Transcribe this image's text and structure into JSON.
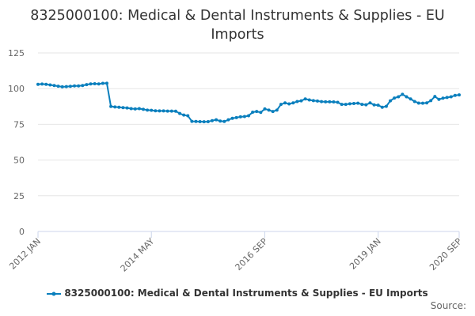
{
  "chart_data": {
    "type": "line",
    "title": "8325000100: Medical & Dental Instruments & Supplies - EU Imports",
    "x_tick_labels": [
      "2012 JAN",
      "2014 MAY",
      "2016 SEP",
      "2019 JAN",
      "2020 SEP"
    ],
    "x_tick_months": [
      0,
      28,
      56,
      84,
      104
    ],
    "y_ticks": [
      0,
      25,
      50,
      75,
      100,
      125
    ],
    "ylim": [
      0,
      125
    ],
    "grid": true,
    "legend_position": "bottom",
    "credit": "Source:",
    "series": [
      {
        "name": "8325000100: Medical & Dental Instruments & Supplies - EU Imports",
        "color": "#0a7fbd",
        "start": "2012-01",
        "frequency": "monthly",
        "values": [
          103.0,
          103.2,
          103.0,
          102.6,
          102.2,
          101.7,
          101.3,
          101.4,
          101.6,
          101.9,
          101.9,
          102.2,
          102.8,
          103.3,
          103.4,
          103.3,
          103.7,
          103.8,
          87.5,
          87.2,
          87.0,
          86.7,
          86.5,
          86.0,
          85.8,
          86.0,
          85.5,
          85.0,
          84.8,
          84.5,
          84.4,
          84.4,
          84.3,
          84.3,
          84.2,
          82.6,
          81.5,
          81.0,
          77.1,
          77.0,
          76.9,
          76.8,
          76.9,
          77.6,
          78.2,
          77.3,
          77.0,
          78.2,
          79.2,
          79.7,
          80.3,
          80.5,
          81.0,
          83.5,
          84.0,
          83.4,
          85.8,
          85.0,
          84.0,
          85.0,
          89.0,
          90.0,
          89.3,
          90.0,
          91.0,
          91.5,
          92.8,
          92.1,
          91.6,
          91.3,
          90.9,
          90.8,
          90.8,
          90.7,
          90.4,
          89.0,
          89.0,
          89.4,
          89.6,
          89.8,
          89.0,
          88.7,
          90.0,
          88.6,
          88.4,
          87.0,
          87.6,
          91.5,
          93.4,
          94.3,
          96.0,
          94.3,
          92.8,
          91.0,
          89.9,
          89.8,
          90.0,
          91.6,
          94.5,
          92.5,
          93.3,
          93.8,
          94.3,
          95.3,
          95.6
        ]
      }
    ]
  }
}
